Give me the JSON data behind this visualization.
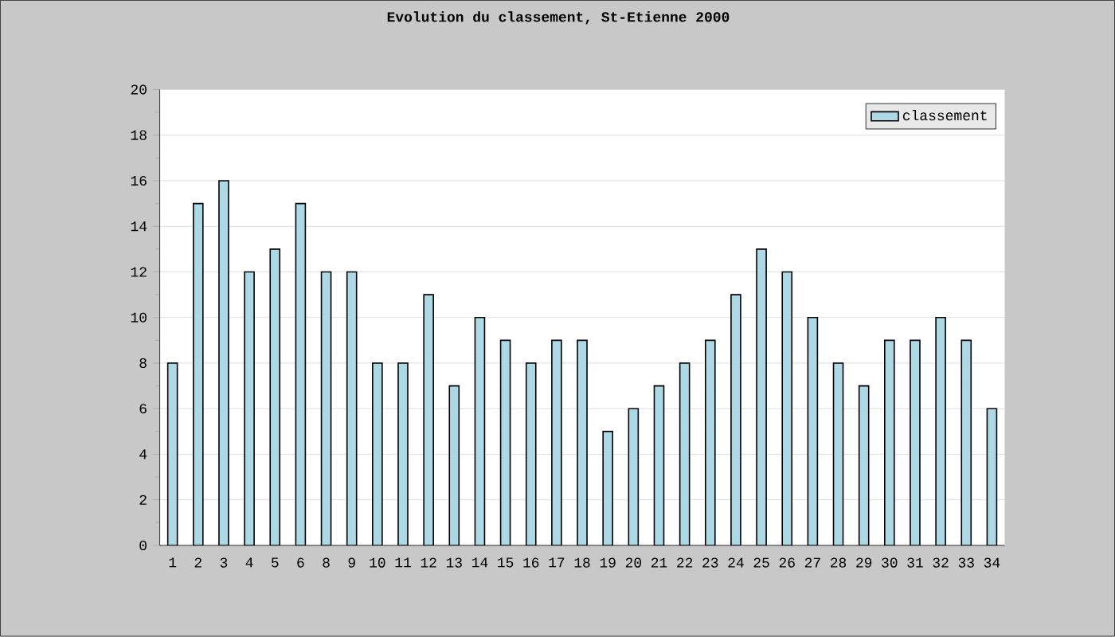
{
  "chart_data": {
    "type": "bar",
    "title": "Evolution du classement, St-Etienne 2000",
    "categories": [
      "1",
      "2",
      "3",
      "4",
      "5",
      "6",
      "8",
      "9",
      "10",
      "11",
      "12",
      "13",
      "14",
      "15",
      "16",
      "17",
      "18",
      "19",
      "20",
      "21",
      "22",
      "23",
      "24",
      "25",
      "26",
      "27",
      "28",
      "29",
      "30",
      "31",
      "32",
      "33",
      "34"
    ],
    "series": [
      {
        "name": "classement",
        "color": "#add8e6",
        "values": [
          8,
          15,
          16,
          12,
          13,
          15,
          12,
          12,
          8,
          8,
          11,
          7,
          10,
          9,
          8,
          9,
          9,
          5,
          6,
          7,
          8,
          9,
          11,
          13,
          12,
          10,
          8,
          7,
          9,
          9,
          10,
          9,
          6
        ]
      }
    ],
    "ylim": [
      0,
      20
    ],
    "yticks": [
      0,
      2,
      4,
      6,
      8,
      10,
      12,
      14,
      16,
      18,
      20
    ],
    "grid": "y",
    "legend": "top right"
  }
}
